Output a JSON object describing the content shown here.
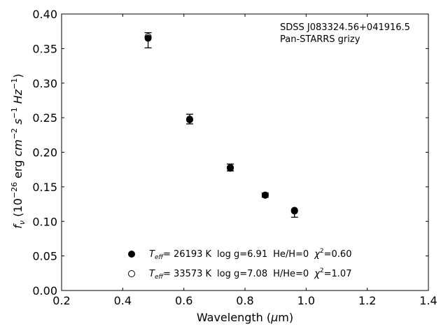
{
  "chart_data": {
    "type": "scatter",
    "title": "",
    "xlabel": "Wavelength (μm)",
    "ylabel": "f_ν (10^-26 erg cm^-2 s^-1 Hz^-1)",
    "xlim": [
      0.2,
      1.4
    ],
    "ylim": [
      0.0,
      0.4
    ],
    "x_ticks": [
      "0.2",
      "0.4",
      "0.6",
      "0.8",
      "1.0",
      "1.2",
      "1.4"
    ],
    "y_ticks": [
      "0.00",
      "0.05",
      "0.10",
      "0.15",
      "0.20",
      "0.25",
      "0.30",
      "0.35",
      "0.40"
    ],
    "grid": false,
    "annotation": {
      "object": "SDSS J083324.56+041916.5",
      "survey": "Pan-STARRS grizy"
    },
    "observed": {
      "x": [
        0.483,
        0.619,
        0.752,
        0.866,
        0.962
      ],
      "y": [
        0.362,
        0.248,
        0.178,
        0.138,
        0.111
      ],
      "yerr": [
        0.011,
        0.007,
        0.005,
        0.003,
        0.005
      ]
    },
    "series": [
      {
        "name": "Teff= 26193 K  log g=6.91  He/H=0  χ²=0.60",
        "marker": "filled-circle",
        "x": [
          0.483,
          0.619,
          0.752,
          0.866,
          0.962
        ],
        "y": [
          0.365,
          0.247,
          0.177,
          0.138,
          0.116
        ]
      },
      {
        "name": "Teff= 33573 K  log g=7.08  H/He=0  χ²=1.07",
        "marker": "open-circle",
        "x": [
          0.483,
          0.619,
          0.752,
          0.866,
          0.962
        ],
        "y": [
          0.367,
          0.248,
          0.178,
          0.138,
          0.115
        ]
      }
    ],
    "legend": {
      "placement": "lower-center",
      "entries": [
        {
          "teff_label": "T",
          "teff_sub": "eff",
          "teff_value": "= 26193 K",
          "logg": "log g=6.91",
          "comp": "He/H=0",
          "chi_label": "χ",
          "chi_sup": "2",
          "chi_value": "=0.60"
        },
        {
          "teff_label": "T",
          "teff_sub": "eff",
          "teff_value": "= 33573 K",
          "logg": "log g=7.08",
          "comp": "H/He=0",
          "chi_label": "χ",
          "chi_sup": "2",
          "chi_value": "=1.07"
        }
      ]
    }
  }
}
